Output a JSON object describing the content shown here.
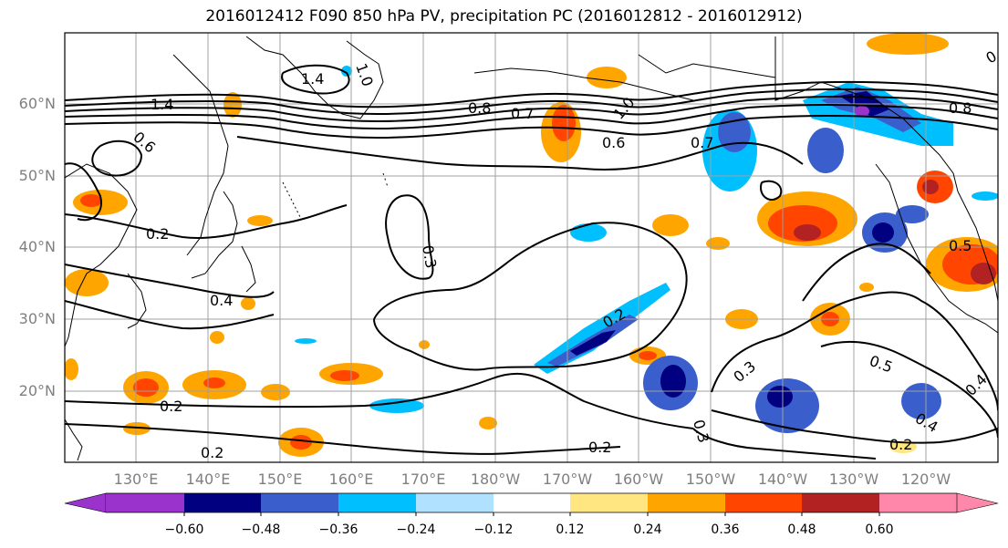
{
  "title": "2016012412 F090 850 hPa PV, precipitation PC (2016012812 - 2016012912)",
  "map": {
    "lat_labels": [
      "60°N",
      "50°N",
      "40°N",
      "30°N",
      "20°N"
    ],
    "lon_labels": [
      "130°E",
      "140°E",
      "150°E",
      "160°E",
      "170°E",
      "180°W",
      "170°W",
      "160°W",
      "150°W",
      "140°W",
      "130°W",
      "120°W"
    ],
    "contour_labels": [
      "1.4",
      "1.0",
      "0.8",
      "0.7",
      "0.6",
      "0.7",
      "1.4",
      "0.8",
      "0.2",
      "0.4",
      "0.3",
      "0.2",
      "0.3",
      "0.3",
      "0.5",
      "0.4",
      "0.4",
      "0.2",
      "0.2",
      "0.2",
      "0.3",
      "0.5",
      "0.2",
      "1.0",
      "0.6"
    ]
  },
  "colorbar": {
    "ticks": [
      "−0.60",
      "−0.48",
      "−0.36",
      "−0.24",
      "−0.12",
      "0.12",
      "0.24",
      "0.36",
      "0.48",
      "0.60"
    ],
    "colors": [
      "#9933cc",
      "#000080",
      "#3a5fcd",
      "#00bfff",
      "#b0e2ff",
      "#ffffff",
      "#ffe680",
      "#ffa500",
      "#ff4500",
      "#b22222",
      "#ff88aa"
    ]
  }
}
